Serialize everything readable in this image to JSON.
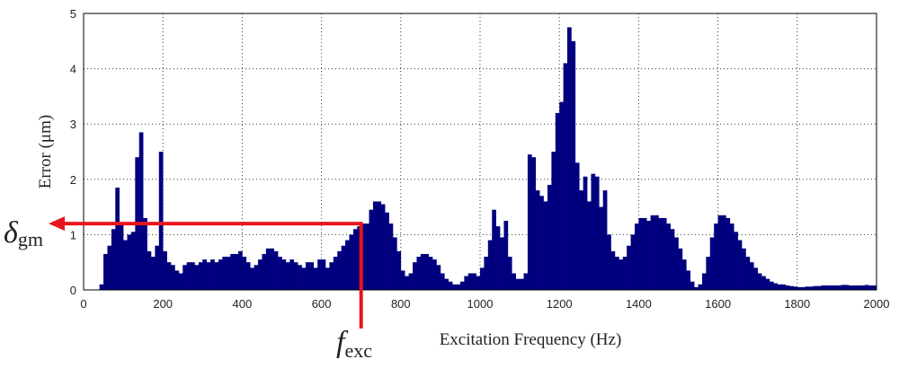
{
  "chart_data": {
    "type": "bar",
    "x_label": "Excitation Frequency (Hz)",
    "y_label": "Error (μm)",
    "x": [
      40,
      50,
      60,
      70,
      80,
      90,
      100,
      110,
      120,
      130,
      140,
      150,
      160,
      170,
      180,
      190,
      200,
      210,
      220,
      230,
      240,
      250,
      260,
      270,
      280,
      290,
      300,
      310,
      320,
      330,
      340,
      350,
      360,
      370,
      380,
      390,
      400,
      410,
      420,
      430,
      440,
      450,
      460,
      470,
      480,
      490,
      500,
      510,
      520,
      530,
      540,
      550,
      560,
      570,
      580,
      590,
      600,
      610,
      620,
      630,
      640,
      650,
      660,
      670,
      680,
      690,
      700,
      710,
      720,
      730,
      740,
      750,
      760,
      770,
      780,
      790,
      800,
      810,
      820,
      830,
      840,
      850,
      860,
      870,
      880,
      890,
      900,
      910,
      920,
      930,
      940,
      950,
      960,
      970,
      980,
      990,
      1000,
      1010,
      1020,
      1030,
      1040,
      1050,
      1060,
      1070,
      1080,
      1090,
      1100,
      1110,
      1120,
      1130,
      1140,
      1150,
      1160,
      1170,
      1180,
      1190,
      1200,
      1210,
      1220,
      1230,
      1240,
      1250,
      1260,
      1270,
      1280,
      1290,
      1300,
      1310,
      1320,
      1330,
      1340,
      1350,
      1360,
      1370,
      1380,
      1390,
      1400,
      1410,
      1420,
      1430,
      1440,
      1450,
      1460,
      1470,
      1480,
      1490,
      1500,
      1510,
      1520,
      1530,
      1540,
      1550,
      1560,
      1570,
      1580,
      1590,
      1600,
      1610,
      1620,
      1630,
      1640,
      1650,
      1660,
      1670,
      1680,
      1690,
      1700,
      1710,
      1720,
      1730,
      1740,
      1750,
      1760,
      1770,
      1780,
      1790,
      1800,
      1810,
      1820,
      1830,
      1840,
      1850,
      1860,
      1870,
      1880,
      1890,
      1900,
      1910,
      1920,
      1930,
      1940,
      1950,
      1960,
      1970,
      1980,
      1990
    ],
    "values": [
      0.1,
      0.65,
      0.8,
      1.1,
      1.85,
      1.2,
      0.9,
      1.0,
      1.05,
      2.4,
      2.85,
      1.3,
      0.7,
      0.6,
      0.8,
      2.5,
      0.7,
      0.5,
      0.45,
      0.35,
      0.3,
      0.45,
      0.5,
      0.5,
      0.45,
      0.5,
      0.55,
      0.5,
      0.55,
      0.5,
      0.55,
      0.6,
      0.6,
      0.65,
      0.65,
      0.7,
      0.6,
      0.5,
      0.4,
      0.45,
      0.55,
      0.65,
      0.75,
      0.75,
      0.7,
      0.6,
      0.55,
      0.5,
      0.55,
      0.5,
      0.45,
      0.4,
      0.5,
      0.5,
      0.4,
      0.55,
      0.55,
      0.4,
      0.5,
      0.6,
      0.7,
      0.8,
      0.9,
      1.0,
      1.1,
      1.15,
      1.2,
      1.2,
      1.45,
      1.6,
      1.6,
      1.55,
      1.4,
      1.2,
      0.95,
      0.7,
      0.35,
      0.25,
      0.3,
      0.5,
      0.6,
      0.65,
      0.65,
      0.6,
      0.55,
      0.45,
      0.3,
      0.2,
      0.15,
      0.1,
      0.1,
      0.15,
      0.25,
      0.3,
      0.3,
      0.25,
      0.4,
      0.6,
      0.9,
      1.45,
      1.15,
      0.95,
      1.25,
      0.6,
      0.3,
      0.2,
      0.2,
      0.3,
      2.45,
      2.4,
      1.8,
      1.7,
      1.6,
      1.9,
      2.5,
      3.2,
      3.4,
      4.1,
      4.75,
      4.5,
      2.3,
      1.8,
      2.05,
      1.6,
      2.1,
      2.05,
      1.5,
      1.8,
      1.0,
      0.7,
      0.6,
      0.55,
      0.6,
      0.8,
      1.0,
      1.2,
      1.3,
      1.3,
      1.25,
      1.35,
      1.35,
      1.3,
      1.3,
      1.2,
      1.1,
      0.95,
      0.75,
      0.55,
      0.35,
      0.15,
      0.05,
      0.1,
      0.3,
      0.6,
      0.95,
      1.2,
      1.35,
      1.35,
      1.3,
      1.2,
      1.05,
      0.9,
      0.75,
      0.6,
      0.5,
      0.4,
      0.3,
      0.25,
      0.2,
      0.15,
      0.12,
      0.1,
      0.1,
      0.08,
      0.07,
      0.06,
      0.05,
      0.05,
      0.06,
      0.06,
      0.07,
      0.07,
      0.08,
      0.08,
      0.08,
      0.08,
      0.08,
      0.09,
      0.09,
      0.08,
      0.08,
      0.08,
      0.08,
      0.09,
      0.08,
      0.08
    ],
    "bar_width": 10,
    "color": "#00007f",
    "xlim": [
      0,
      2000
    ],
    "xticks": [
      0,
      200,
      400,
      600,
      800,
      1000,
      1200,
      1400,
      1600,
      1800,
      2000
    ],
    "ylim": [
      0,
      5
    ],
    "yticks": [
      0,
      1,
      2,
      3,
      4,
      5
    ],
    "grid": true,
    "annotations": [
      {
        "text": "δ",
        "subscript": "gm"
      },
      {
        "text": "f",
        "subscript": "exc"
      }
    ],
    "marker": {
      "x": 700,
      "y": 1.2,
      "color": "#e8161b"
    }
  }
}
